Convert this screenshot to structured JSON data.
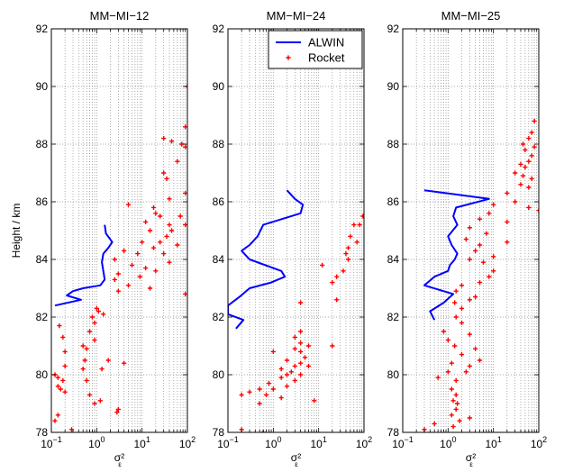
{
  "chart_data": [
    {
      "type": "line",
      "title": "MM−MI−12",
      "ylabel": "Height / km",
      "xlabel": "σ²",
      "xlabel_sub": "ε",
      "xscale": "log",
      "xlim": [
        0.1,
        100
      ],
      "ylim": [
        78,
        92
      ],
      "grid": true,
      "x_ticks": [
        0.1,
        1,
        10,
        100
      ],
      "x_tick_labels": [
        {
          "base": "10",
          "exp": "−1"
        },
        {
          "base": "10",
          "exp": "0"
        },
        {
          "base": "10",
          "exp": "1"
        },
        {
          "base": "10",
          "exp": "2"
        }
      ],
      "y_ticks": [
        78,
        80,
        82,
        84,
        86,
        88,
        90,
        92
      ],
      "y_tick_labels": [
        "78",
        "80",
        "82",
        "84",
        "86",
        "88",
        "90",
        "92"
      ],
      "series": [
        {
          "kind": "line",
          "color": "#0000ff",
          "points": [
            [
              1.5,
              85.2
            ],
            [
              1.6,
              84.9
            ],
            [
              2.2,
              84.6
            ],
            [
              1.8,
              84.4
            ],
            [
              1.4,
              84.2
            ],
            [
              1.3,
              83.9
            ],
            [
              1.4,
              83.6
            ],
            [
              1.5,
              83.3
            ],
            [
              1.2,
              83.1
            ],
            [
              0.5,
              83.0
            ],
            [
              0.3,
              82.9
            ],
            [
              0.22,
              82.75
            ],
            [
              0.45,
              82.6
            ],
            [
              0.12,
              82.4
            ]
          ]
        },
        {
          "kind": "scatter",
          "color": "#ff0000",
          "points": [
            [
              100,
              90.0
            ],
            [
              90,
              88.6
            ],
            [
              30,
              88.2
            ],
            [
              45,
              88.1
            ],
            [
              75,
              88.0
            ],
            [
              90,
              87.9
            ],
            [
              60,
              87.4
            ],
            [
              30,
              87.0
            ],
            [
              35,
              86.8
            ],
            [
              130,
              86.7
            ],
            [
              90,
              86.3
            ],
            [
              40,
              86.1
            ],
            [
              5,
              85.9
            ],
            [
              18,
              85.8
            ],
            [
              20,
              85.6
            ],
            [
              25,
              85.5
            ],
            [
              70,
              85.5
            ],
            [
              12,
              85.3
            ],
            [
              40,
              85.2
            ],
            [
              90,
              85.2
            ],
            [
              15,
              85.0
            ],
            [
              45,
              85.0
            ],
            [
              35,
              84.8
            ],
            [
              10,
              84.6
            ],
            [
              25,
              84.6
            ],
            [
              60,
              84.5
            ],
            [
              18,
              84.4
            ],
            [
              4,
              84.3
            ],
            [
              30,
              84.2
            ],
            [
              8,
              84.2
            ],
            [
              2.5,
              84.0
            ],
            [
              40,
              83.9
            ],
            [
              6,
              83.8
            ],
            [
              12,
              83.7
            ],
            [
              20,
              83.6
            ],
            [
              3,
              83.5
            ],
            [
              9,
              83.4
            ],
            [
              2.5,
              83.3
            ],
            [
              5,
              83.1
            ],
            [
              15,
              83.0
            ],
            [
              3,
              82.9
            ],
            [
              90,
              82.8
            ],
            [
              1,
              82.3
            ],
            [
              1.1,
              82.2
            ],
            [
              1.4,
              82.1
            ],
            [
              0.8,
              82.0
            ],
            [
              0.9,
              81.8
            ],
            [
              0.15,
              81.7
            ],
            [
              0.7,
              81.5
            ],
            [
              0.18,
              81.3
            ],
            [
              0.9,
              81.2
            ],
            [
              0.5,
              81.0
            ],
            [
              0.6,
              80.9
            ],
            [
              0.2,
              80.8
            ],
            [
              0.55,
              80.5
            ],
            [
              1.8,
              80.5
            ],
            [
              4,
              80.4
            ],
            [
              0.2,
              80.3
            ],
            [
              0.5,
              80.2
            ],
            [
              1.3,
              80.2
            ],
            [
              0.12,
              80.0
            ],
            [
              0.14,
              79.9
            ],
            [
              0.18,
              79.8
            ],
            [
              0.6,
              79.8
            ],
            [
              0.14,
              79.6
            ],
            [
              0.16,
              79.5
            ],
            [
              0.2,
              79.4
            ],
            [
              0.7,
              79.3
            ],
            [
              1.2,
              79.1
            ],
            [
              0.9,
              79.0
            ],
            [
              3,
              78.8
            ],
            [
              2.8,
              78.7
            ],
            [
              0.14,
              78.6
            ],
            [
              0.12,
              78.4
            ],
            [
              0.28,
              78.1
            ]
          ]
        }
      ]
    },
    {
      "type": "line",
      "title": "MM−MI−24",
      "xlabel": "σ²",
      "xlabel_sub": "ε",
      "xscale": "log",
      "xlim": [
        0.1,
        100
      ],
      "ylim": [
        78,
        92
      ],
      "grid": true,
      "x_ticks": [
        0.1,
        1,
        10,
        100
      ],
      "x_tick_labels": [
        {
          "base": "10",
          "exp": "−1"
        },
        {
          "base": "10",
          "exp": "0"
        },
        {
          "base": "10",
          "exp": "1"
        },
        {
          "base": "10",
          "exp": "2"
        }
      ],
      "y_ticks": [
        78,
        80,
        82,
        84,
        86,
        88,
        90,
        92
      ],
      "y_tick_labels": [
        "78",
        "80",
        "82",
        "84",
        "86",
        "88",
        "90",
        "92"
      ],
      "legend": {
        "placement": "top-right",
        "entries": [
          {
            "label": "ALWIN",
            "kind": "line",
            "color": "#0000ff"
          },
          {
            "label": "Rocket",
            "kind": "scatter",
            "color": "#ff0000"
          }
        ]
      },
      "series": [
        {
          "kind": "line",
          "color": "#0000ff",
          "points": [
            [
              2,
              86.4
            ],
            [
              3,
              86.1
            ],
            [
              4.5,
              85.9
            ],
            [
              4,
              85.6
            ],
            [
              0.6,
              85.2
            ],
            [
              0.45,
              84.8
            ],
            [
              0.3,
              84.5
            ],
            [
              0.2,
              84.3
            ],
            [
              0.3,
              84.0
            ],
            [
              1.5,
              83.6
            ],
            [
              1.8,
              83.4
            ],
            [
              0.9,
              83.2
            ],
            [
              0.3,
              83.0
            ],
            [
              0.18,
              82.7
            ],
            [
              0.1,
              82.4
            ],
            [
              0.1,
              82.1
            ],
            [
              0.22,
              81.9
            ],
            [
              0.15,
              81.6
            ]
          ]
        },
        {
          "kind": "scatter",
          "color": "#ff0000",
          "points": [
            [
              95,
              85.5
            ],
            [
              60,
              85.2
            ],
            [
              80,
              85.2
            ],
            [
              50,
              84.8
            ],
            [
              70,
              84.6
            ],
            [
              45,
              84.4
            ],
            [
              40,
              84.2
            ],
            [
              45,
              84.0
            ],
            [
              12,
              83.8
            ],
            [
              35,
              83.6
            ],
            [
              25,
              83.4
            ],
            [
              20,
              83.2
            ],
            [
              25,
              82.6
            ],
            [
              4,
              82.5
            ],
            [
              20,
              81.0
            ],
            [
              4,
              81.5
            ],
            [
              3,
              81.3
            ],
            [
              4,
              81.1
            ],
            [
              6,
              81.0
            ],
            [
              3,
              80.9
            ],
            [
              1,
              80.8
            ],
            [
              4,
              80.8
            ],
            [
              5,
              80.6
            ],
            [
              2,
              80.5
            ],
            [
              4,
              80.4
            ],
            [
              3,
              80.3
            ],
            [
              6,
              80.3
            ],
            [
              1.5,
              80.2
            ],
            [
              2.5,
              80.1
            ],
            [
              2,
              80.0
            ],
            [
              4,
              80.0
            ],
            [
              1.5,
              79.9
            ],
            [
              3,
              79.8
            ],
            [
              0.8,
              79.7
            ],
            [
              2,
              79.6
            ],
            [
              0.5,
              79.5
            ],
            [
              1,
              79.5
            ],
            [
              0.3,
              79.4
            ],
            [
              0.7,
              79.3
            ],
            [
              0.2,
              79.3
            ],
            [
              1.5,
              79.2
            ],
            [
              8,
              79.1
            ],
            [
              0.5,
              79.0
            ],
            [
              0.2,
              78.1
            ],
            [
              0.6,
              78.0
            ]
          ]
        }
      ]
    },
    {
      "type": "line",
      "title": "MM−MI−25",
      "xlabel": "σ²",
      "xlabel_sub": "ε",
      "xscale": "log",
      "xlim": [
        0.1,
        100
      ],
      "ylim": [
        78,
        92
      ],
      "grid": true,
      "x_ticks": [
        0.1,
        1,
        10,
        100
      ],
      "x_tick_labels": [
        {
          "base": "10",
          "exp": "−1"
        },
        {
          "base": "10",
          "exp": "0"
        },
        {
          "base": "10",
          "exp": "1"
        },
        {
          "base": "10",
          "exp": "2"
        }
      ],
      "y_ticks": [
        78,
        80,
        82,
        84,
        86,
        88,
        90,
        92
      ],
      "y_tick_labels": [
        "78",
        "80",
        "82",
        "84",
        "86",
        "88",
        "90",
        "92"
      ],
      "series": [
        {
          "kind": "line",
          "color": "#0000ff",
          "points": [
            [
              0.3,
              86.4
            ],
            [
              8,
              86.1
            ],
            [
              1.5,
              85.8
            ],
            [
              1.3,
              85.5
            ],
            [
              1.6,
              85.2
            ],
            [
              1,
              84.8
            ],
            [
              1.2,
              84.5
            ],
            [
              1.6,
              84.2
            ],
            [
              1.4,
              84.0
            ],
            [
              1.1,
              83.8
            ],
            [
              1,
              83.6
            ],
            [
              0.5,
              83.4
            ],
            [
              0.3,
              83.1
            ],
            [
              1.3,
              82.8
            ],
            [
              0.8,
              82.5
            ],
            [
              0.4,
              82.2
            ],
            [
              0.5,
              81.9
            ]
          ]
        },
        {
          "kind": "scatter",
          "color": "#ff0000",
          "points": [
            [
              110,
              89.0
            ],
            [
              80,
              88.8
            ],
            [
              70,
              88.4
            ],
            [
              60,
              88.2
            ],
            [
              45,
              88.0
            ],
            [
              80,
              87.9
            ],
            [
              50,
              87.8
            ],
            [
              70,
              87.6
            ],
            [
              60,
              87.4
            ],
            [
              40,
              87.3
            ],
            [
              50,
              87.2
            ],
            [
              30,
              87.0
            ],
            [
              45,
              86.9
            ],
            [
              70,
              86.8
            ],
            [
              40,
              86.6
            ],
            [
              60,
              86.5
            ],
            [
              20,
              86.3
            ],
            [
              30,
              86.0
            ],
            [
              10,
              85.9
            ],
            [
              60,
              85.8
            ],
            [
              100,
              85.7
            ],
            [
              8,
              85.6
            ],
            [
              5,
              85.4
            ],
            [
              20,
              85.3
            ],
            [
              3,
              85.1
            ],
            [
              7,
              84.9
            ],
            [
              2.5,
              84.7
            ],
            [
              5,
              84.5
            ],
            [
              20,
              84.6
            ],
            [
              4,
              84.3
            ],
            [
              10,
              84.1
            ],
            [
              3,
              84.0
            ],
            [
              6,
              83.9
            ],
            [
              10,
              83.6
            ],
            [
              8,
              83.4
            ],
            [
              5,
              83.2
            ],
            [
              2,
              83.1
            ],
            [
              1.5,
              82.9
            ],
            [
              4,
              82.7
            ],
            [
              1.4,
              82.5
            ],
            [
              3,
              82.6
            ],
            [
              2,
              82.3
            ],
            [
              1.5,
              82.0
            ],
            [
              2,
              81.8
            ],
            [
              0.8,
              81.5
            ],
            [
              3,
              81.4
            ],
            [
              1,
              81.2
            ],
            [
              1.4,
              81.0
            ],
            [
              4,
              80.9
            ],
            [
              2,
              80.7
            ],
            [
              5,
              80.5
            ],
            [
              1.2,
              80.4
            ],
            [
              3,
              80.3
            ],
            [
              1,
              80.1
            ],
            [
              2.5,
              80.1
            ],
            [
              0.6,
              79.9
            ],
            [
              1.5,
              79.8
            ],
            [
              1.2,
              79.5
            ],
            [
              1.5,
              79.3
            ],
            [
              1.3,
              79.1
            ],
            [
              1.6,
              79.0
            ],
            [
              1.5,
              78.8
            ],
            [
              1.2,
              78.6
            ],
            [
              3,
              78.5
            ],
            [
              1.8,
              78.4
            ],
            [
              0.5,
              78.3
            ],
            [
              1.3,
              78.2
            ],
            [
              0.3,
              78.1
            ]
          ]
        }
      ]
    }
  ]
}
